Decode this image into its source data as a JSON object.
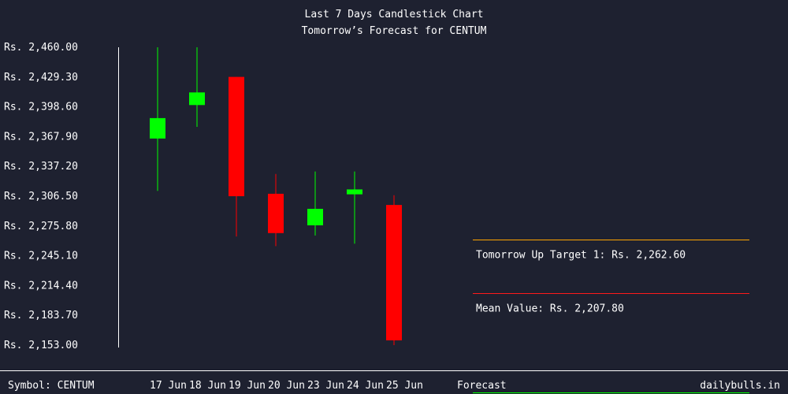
{
  "chart_data": {
    "type": "candlestick",
    "title": "Last 7 Days Candlestick Chart",
    "subtitle": "Tomorrow’s Forecast for CENTUM",
    "ylim": [
      2153.0,
      2460.0
    ],
    "y_ticks": [
      "Rs. 2,460.00",
      "Rs. 2,429.30",
      "Rs. 2,398.60",
      "Rs. 2,367.90",
      "Rs. 2,337.20",
      "Rs. 2,306.50",
      "Rs. 2,275.80",
      "Rs. 2,245.10",
      "Rs. 2,214.40",
      "Rs. 2,183.70",
      "Rs. 2,153.00"
    ],
    "categories": [
      "17 Jun",
      "18 Jun",
      "19 Jun",
      "20 Jun",
      "23 Jun",
      "24 Jun",
      "25 Jun"
    ],
    "candles": [
      {
        "date": "17 Jun",
        "open": 2366.0,
        "close": 2387.0,
        "high": 2460.0,
        "low": 2312.0,
        "direction": "up"
      },
      {
        "date": "18 Jun",
        "open": 2400.5,
        "close": 2413.5,
        "high": 2460.0,
        "low": 2378.0,
        "direction": "up"
      },
      {
        "date": "19 Jun",
        "open": 2429.5,
        "close": 2306.5,
        "high": 2429.5,
        "low": 2265.0,
        "direction": "down"
      },
      {
        "date": "20 Jun",
        "open": 2309.0,
        "close": 2268.5,
        "high": 2329.5,
        "low": 2255.0,
        "direction": "down"
      },
      {
        "date": "23 Jun",
        "open": 2276.5,
        "close": 2293.5,
        "high": 2332.0,
        "low": 2266.0,
        "direction": "up"
      },
      {
        "date": "24 Jun",
        "open": 2308.5,
        "close": 2313.5,
        "high": 2332.0,
        "low": 2257.5,
        "direction": "up"
      },
      {
        "date": "25 Jun",
        "open": 2297.5,
        "close": 2158.0,
        "high": 2307.5,
        "low": 2153.0,
        "direction": "down"
      }
    ],
    "forecast": {
      "label": "Forecast",
      "levels": [
        {
          "label": "Tomorrow Up Target 1: Rs. 2,262.60",
          "color": "#ffa500"
        },
        {
          "label": "Mean Value: Rs. 2,207.80",
          "color": "#ff1a1a"
        }
      ]
    },
    "colors": {
      "up": "#00ff00",
      "down": "#ff0000",
      "axis": "#ffffff"
    }
  },
  "footer": {
    "symbol": "Symbol: CENTUM",
    "brand": "dailybulls.in"
  }
}
